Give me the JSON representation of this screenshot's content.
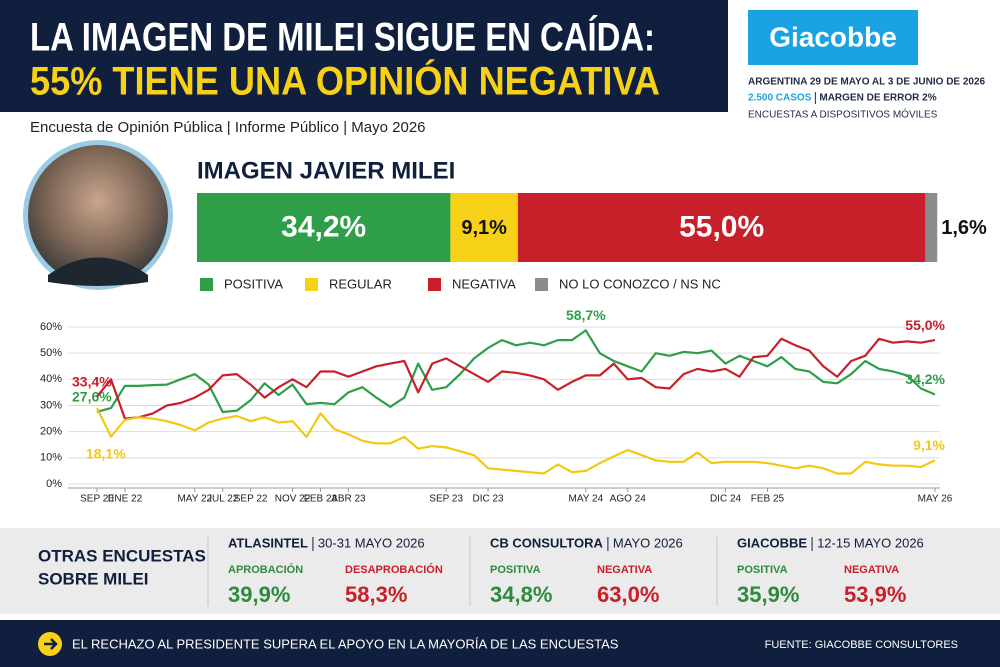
{
  "header": {
    "title_line1": "LA IMAGEN DE MILEI SIGUE EN CAÍDA:",
    "title_line2": "55% TIENE UNA OPINIÓN NEGATIVA",
    "subtitle": "Encuesta de Opinión Pública | Informe Público | Mayo 2026"
  },
  "brand": {
    "logo": "Giacobbe",
    "line1": "ARGENTINA 29 DE MAYO AL 3 DE JUNIO DE 2026",
    "cases": "2.500 CASOS",
    "margin": "MARGEN DE ERROR 2%",
    "line3": "ENCUESTAS A DISPOSITIVOS MÓVILES"
  },
  "chart_data": [
    {
      "type": "stacked_bar",
      "title": "IMAGEN JAVIER MILEI",
      "xlim": [
        0,
        100
      ],
      "series": [
        {
          "name": "POSITIVA",
          "color": "#2e9e48",
          "values": [
            34.2
          ],
          "value_labels": [
            "34,2%"
          ]
        },
        {
          "name": "REGULAR",
          "color": "#f7d117",
          "values": [
            9.1
          ],
          "value_labels": [
            "9,1%"
          ]
        },
        {
          "name": "NEGATIVA",
          "color": "#c8202a",
          "values": [
            55.0
          ],
          "value_labels": [
            "55,0%"
          ]
        },
        {
          "name": "NO LO CONOZCO / NS NC",
          "color": "#8c8c8c",
          "values": [
            1.6
          ],
          "value_labels": [
            "1,6%"
          ]
        }
      ]
    },
    {
      "type": "line",
      "categories": [
        "SEP 20",
        null,
        "ENE 22",
        null,
        null,
        null,
        null,
        "MAY 22",
        null,
        "JUL 22",
        null,
        "SEP 22",
        null,
        null,
        "NOV 22",
        null,
        "FEB 23",
        null,
        "ABR 23",
        null,
        null,
        null,
        null,
        null,
        null,
        "SEP 23",
        null,
        null,
        "DIC 23",
        null,
        null,
        null,
        null,
        null,
        null,
        "MAY 24",
        null,
        null,
        "AGO 24",
        null,
        null,
        null,
        null,
        null,
        null,
        "DIC 24",
        null,
        null,
        "FEB 25",
        null,
        null,
        null,
        null,
        null,
        null,
        null,
        null,
        null,
        null,
        null,
        "MAY 26"
      ],
      "ylim": [
        0,
        60
      ],
      "yticks": [
        {
          "value": 0,
          "label": "0%"
        },
        {
          "value": 10,
          "label": "10%"
        },
        {
          "value": 20,
          "label": "20%"
        },
        {
          "value": 30,
          "label": "30%"
        },
        {
          "value": 40,
          "label": "40%"
        },
        {
          "value": 50,
          "label": "50%"
        },
        {
          "value": 60,
          "label": "60%"
        }
      ],
      "grid": true,
      "series": [
        {
          "color": "#2e9e48",
          "values": [
            27.6,
            29,
            37.5,
            37.5,
            37.8,
            38,
            40,
            42,
            38,
            27.5,
            28,
            32,
            38.5,
            34,
            38,
            30.5,
            31,
            30.5,
            35,
            37,
            33,
            29.5,
            33,
            46,
            36,
            37,
            42,
            48,
            52,
            55,
            53,
            54,
            53,
            55,
            55,
            58.7,
            50,
            47,
            45,
            43,
            50,
            49,
            50.5,
            50,
            51,
            46,
            49,
            47,
            45,
            48.5,
            44,
            43,
            39,
            38.5,
            42,
            47,
            44,
            43,
            41.5,
            36.5,
            34.2
          ],
          "value_labels": [
            "27,6%",
            null,
            null,
            null,
            null,
            null,
            null,
            null,
            null,
            null,
            null,
            null,
            null,
            null,
            null,
            null,
            null,
            null,
            null,
            null,
            null,
            null,
            null,
            null,
            null,
            null,
            null,
            null,
            null,
            null,
            null,
            null,
            null,
            null,
            null,
            "58,7%",
            null,
            null,
            null,
            null,
            null,
            null,
            null,
            null,
            null,
            null,
            null,
            null,
            null,
            null,
            null,
            null,
            null,
            null,
            null,
            null,
            null,
            null,
            null,
            null,
            "34,2%"
          ]
        },
        {
          "color": "#c8202a",
          "values": [
            33.4,
            40,
            25,
            25.5,
            27,
            30,
            31,
            33,
            36,
            41.5,
            42,
            38,
            33,
            37,
            40,
            37,
            43,
            43,
            41,
            43,
            45,
            46,
            47,
            35,
            46,
            48,
            45,
            42,
            39,
            43,
            42.5,
            41.5,
            40,
            36,
            39,
            41.5,
            41.5,
            46,
            40,
            40.5,
            37,
            36.5,
            42,
            44,
            43,
            44,
            41,
            48.5,
            49,
            55.5,
            53,
            51,
            45,
            41,
            47,
            49,
            55.5,
            54,
            54.5,
            54,
            55.0
          ],
          "value_labels": [
            "33,4%",
            null,
            null,
            null,
            null,
            null,
            null,
            null,
            null,
            null,
            null,
            null,
            null,
            null,
            null,
            null,
            null,
            null,
            null,
            null,
            null,
            null,
            null,
            null,
            null,
            null,
            null,
            null,
            null,
            null,
            null,
            null,
            null,
            null,
            null,
            null,
            null,
            null,
            null,
            null,
            null,
            null,
            null,
            null,
            null,
            null,
            null,
            null,
            null,
            null,
            null,
            null,
            null,
            null,
            null,
            null,
            null,
            null,
            null,
            null,
            "55,0%"
          ]
        },
        {
          "color": "#f2c811",
          "values": [
            29,
            18.1,
            24.5,
            25.5,
            25,
            24,
            22.5,
            20.5,
            23.5,
            25,
            26,
            24,
            25.5,
            23.5,
            24,
            18,
            27,
            21,
            19,
            16.5,
            15.5,
            15.5,
            18,
            13.5,
            14.5,
            14,
            12.5,
            11,
            6,
            5.5,
            5,
            4.5,
            4,
            7.5,
            4.5,
            5,
            8,
            10.5,
            13,
            11,
            9,
            8.5,
            8.5,
            12,
            8,
            8.5,
            8.5,
            8.5,
            8,
            7,
            6,
            7,
            6,
            4,
            4,
            8.5,
            7.5,
            7,
            7,
            6.5,
            9.1
          ],
          "value_labels": [
            null,
            "18,1%",
            null,
            null,
            null,
            null,
            null,
            null,
            null,
            null,
            null,
            null,
            null,
            null,
            null,
            null,
            null,
            null,
            null,
            null,
            null,
            null,
            null,
            null,
            null,
            null,
            null,
            null,
            null,
            null,
            null,
            null,
            null,
            null,
            null,
            null,
            null,
            null,
            null,
            null,
            null,
            null,
            null,
            null,
            null,
            null,
            null,
            null,
            null,
            null,
            null,
            null,
            null,
            null,
            null,
            null,
            null,
            null,
            null,
            null,
            "9,1%"
          ]
        }
      ]
    }
  ],
  "other_polls": {
    "title": [
      "OTRAS ENCUESTAS",
      "SOBRE MILEI"
    ],
    "polls": [
      {
        "name": "ATLASINTEL",
        "date": "30-31 MAYO 2026",
        "metrics": [
          {
            "label": "APROBACIÓN",
            "value": "39,9%"
          },
          {
            "label": "DESAPROBACIÓN",
            "value": "58,3%"
          }
        ]
      },
      {
        "name": "CB CONSULTORA",
        "date": "MAYO 2026",
        "metrics": [
          {
            "label": "POSITIVA",
            "value": "34,8%"
          },
          {
            "label": "NEGATIVA",
            "value": "63,0%"
          }
        ]
      },
      {
        "name": "GIACOBBE",
        "date": "12-15 MAYO 2026",
        "metrics": [
          {
            "label": "POSITIVA",
            "value": "35,9%"
          },
          {
            "label": "NEGATIVA",
            "value": "53,9%"
          }
        ]
      }
    ]
  },
  "footer": {
    "message": "EL RECHAZO AL PRESIDENTE SUPERA EL APOYO EN LA MAYORÍA DE LAS ENCUESTAS",
    "source": "FUENTE: GIACOBBE CONSULTORES"
  }
}
